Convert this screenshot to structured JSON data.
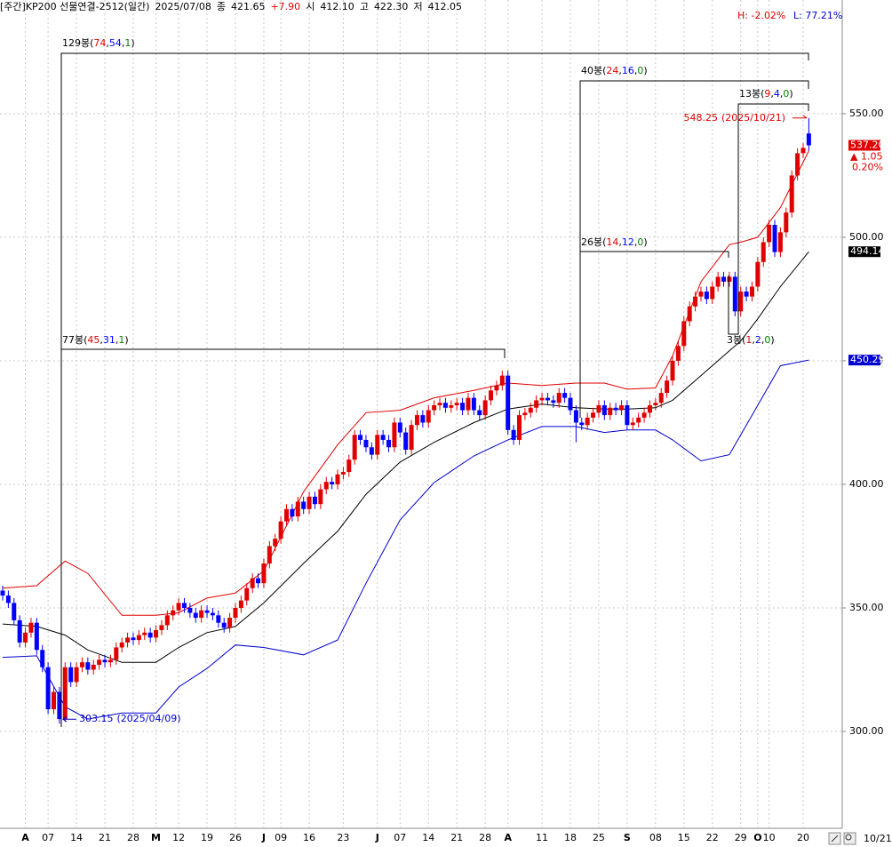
{
  "chart_data": {
    "type": "candlestick",
    "header": [
      {
        "text": "[주간]KP200 선물연결-2512(일간)",
        "color": "#000000"
      },
      {
        "text": "2025/07/08",
        "color": "#000000"
      },
      {
        "text": "종",
        "color": "#000000"
      },
      {
        "text": "421.65",
        "color": "#000000"
      },
      {
        "text": "+7.90",
        "color": "#e00000"
      },
      {
        "text": "시",
        "color": "#000000"
      },
      {
        "text": "412.10",
        "color": "#000000"
      },
      {
        "text": "고",
        "color": "#000000"
      },
      {
        "text": "422.30",
        "color": "#000000"
      },
      {
        "text": "저",
        "color": "#000000"
      },
      {
        "text": "412.05",
        "color": "#000000"
      }
    ],
    "range_high": {
      "text": "H: -2.02%",
      "color": "#e00000"
    },
    "range_low": {
      "text": "L: 77.21%",
      "color": "#0000d0"
    },
    "up_color": "#e00000",
    "down_color": "#0000ff",
    "ylim": [
      260.8,
      596.0
    ],
    "yticks": [
      {
        "value": 300,
        "label": "300.00"
      },
      {
        "value": 350,
        "label": "350.00"
      },
      {
        "value": 400,
        "label": "400.00"
      },
      {
        "value": 450,
        "label": "450.00"
      },
      {
        "value": 500,
        "label": "500.00"
      },
      {
        "value": 550,
        "label": "550.00"
      }
    ],
    "grid": true,
    "categories": [
      null,
      null,
      null,
      null,
      "A",
      null,
      null,
      null,
      "07",
      null,
      null,
      null,
      null,
      "14",
      null,
      null,
      null,
      null,
      "21",
      null,
      null,
      null,
      null,
      "28",
      null,
      null,
      null,
      "M",
      null,
      null,
      null,
      "12",
      null,
      null,
      null,
      null,
      "19",
      null,
      null,
      null,
      null,
      "26",
      null,
      null,
      null,
      null,
      "J",
      null,
      null,
      "09",
      null,
      null,
      null,
      null,
      "16",
      null,
      null,
      null,
      null,
      null,
      "23",
      null,
      null,
      null,
      null,
      null,
      "J",
      null,
      null,
      null,
      "07",
      null,
      null,
      null,
      null,
      "14",
      null,
      null,
      null,
      null,
      "21",
      null,
      null,
      null,
      null,
      "28",
      null,
      null,
      null,
      "A",
      null,
      null,
      null,
      null,
      null,
      "11",
      null,
      null,
      null,
      null,
      "18",
      null,
      null,
      null,
      null,
      "25",
      null,
      null,
      null,
      null,
      "S",
      null,
      null,
      null,
      null,
      "08",
      null,
      null,
      null,
      null,
      "15",
      null,
      null,
      null,
      null,
      "22",
      null,
      null,
      null,
      null,
      "29",
      null,
      null,
      "O",
      null,
      "10",
      null,
      null,
      null,
      null,
      null,
      "20",
      null
    ],
    "open": [
      357,
      355,
      352,
      345,
      336,
      340,
      344,
      333,
      326,
      309,
      316,
      305,
      326,
      320,
      326,
      328,
      325,
      327,
      329,
      328,
      329,
      334,
      336,
      338,
      337,
      339,
      340,
      338,
      341,
      343,
      347,
      349,
      352,
      350,
      348,
      346,
      349,
      348,
      347,
      344,
      342,
      346,
      350,
      353,
      358,
      362,
      360,
      368,
      375,
      378,
      385,
      390,
      387,
      393,
      390,
      395,
      392,
      398,
      401,
      400,
      404,
      405,
      410,
      420,
      418,
      415,
      412,
      420,
      418,
      415,
      425,
      421,
      414,
      424,
      428,
      425,
      430,
      432,
      433,
      431,
      432,
      433,
      430,
      435,
      430,
      428,
      434,
      438,
      440,
      444,
      422,
      418,
      428,
      429,
      431,
      434,
      435,
      434,
      433,
      437,
      435,
      430,
      425,
      424,
      427,
      429,
      432,
      428,
      431,
      430,
      432,
      424,
      425,
      427,
      429,
      432,
      433,
      437,
      442,
      450,
      456,
      466,
      472,
      476,
      478,
      475,
      480,
      484,
      482,
      484,
      470,
      478,
      476,
      480,
      490,
      498,
      505,
      494,
      502,
      510,
      525,
      534,
      542
    ],
    "high": [
      359,
      357,
      354,
      347,
      342,
      346,
      346,
      335,
      328,
      318,
      318,
      328,
      328,
      328,
      330,
      330,
      329,
      331,
      331,
      331,
      336,
      338,
      340,
      340,
      341,
      342,
      342,
      343,
      345,
      349,
      351,
      354,
      354,
      352,
      350,
      351,
      351,
      350,
      349,
      346,
      348,
      352,
      355,
      360,
      364,
      364,
      370,
      377,
      380,
      387,
      392,
      392,
      395,
      395,
      397,
      397,
      400,
      403,
      403,
      406,
      407,
      412,
      422,
      422,
      420,
      417,
      422,
      422,
      420,
      427,
      427,
      423,
      426,
      430,
      430,
      432,
      434,
      435,
      435,
      434,
      435,
      435,
      437,
      437,
      432,
      436,
      440,
      442,
      446,
      446,
      424,
      430,
      431,
      433,
      436,
      437,
      437,
      436,
      439,
      439,
      437,
      432,
      427,
      429,
      431,
      434,
      434,
      433,
      433,
      434,
      434,
      427,
      429,
      431,
      434,
      435,
      439,
      444,
      452,
      458,
      468,
      474,
      478,
      480,
      480,
      482,
      486,
      486,
      486,
      486,
      480,
      480,
      482,
      492,
      500,
      507,
      507,
      504,
      512,
      527,
      536,
      538,
      548.25
    ],
    "low": [
      353,
      350,
      343,
      334,
      334,
      338,
      331,
      324,
      307,
      307,
      303.15,
      304,
      318,
      318,
      324,
      323,
      323,
      325,
      326,
      326,
      327,
      332,
      334,
      335,
      335,
      337,
      336,
      336,
      339,
      341,
      345,
      347,
      348,
      346,
      344,
      344,
      346,
      345,
      342,
      340,
      340,
      344,
      348,
      351,
      356,
      358,
      358,
      366,
      373,
      376,
      383,
      385,
      385,
      388,
      388,
      390,
      390,
      396,
      398,
      398,
      402,
      403,
      408,
      416,
      413,
      410,
      410,
      416,
      413,
      413,
      419,
      412,
      412,
      422,
      423,
      423,
      428,
      430,
      429,
      429,
      430,
      428,
      428,
      428,
      426,
      426,
      432,
      436,
      438,
      420,
      416,
      416,
      426,
      427,
      429,
      432,
      432,
      431,
      431,
      433,
      428,
      417,
      422,
      422,
      425,
      427,
      426,
      426,
      428,
      428,
      422,
      422,
      423,
      425,
      427,
      430,
      431,
      435,
      440,
      448,
      454,
      464,
      470,
      474,
      473,
      473,
      478,
      480,
      480,
      468,
      468,
      474,
      474,
      478,
      488,
      496,
      492,
      492,
      500,
      508,
      523,
      532,
      535
    ],
    "close": [
      355,
      352,
      345,
      336,
      340,
      344,
      333,
      326,
      309,
      316,
      305,
      326,
      320,
      326,
      328,
      325,
      327,
      329,
      328,
      329,
      334,
      336,
      338,
      337,
      339,
      340,
      338,
      341,
      343,
      347,
      349,
      352,
      350,
      348,
      346,
      349,
      348,
      347,
      344,
      342,
      346,
      350,
      353,
      358,
      362,
      360,
      368,
      375,
      378,
      385,
      390,
      387,
      393,
      390,
      395,
      392,
      398,
      401,
      400,
      404,
      405,
      410,
      420,
      418,
      415,
      412,
      420,
      418,
      415,
      425,
      421,
      414,
      424,
      428,
      425,
      430,
      432,
      433,
      431,
      432,
      433,
      430,
      435,
      430,
      428,
      434,
      438,
      440,
      444,
      422,
      418,
      428,
      429,
      431,
      434,
      435,
      434,
      433,
      437,
      435,
      430,
      425,
      424,
      427,
      429,
      432,
      428,
      431,
      430,
      432,
      424,
      425,
      427,
      429,
      432,
      433,
      437,
      442,
      450,
      456,
      466,
      472,
      476,
      478,
      475,
      480,
      484,
      482,
      484,
      470,
      478,
      476,
      480,
      490,
      498,
      505,
      494,
      502,
      510,
      525,
      534,
      536.15,
      537.2
    ],
    "band_x": [
      0,
      6,
      11,
      15,
      21,
      27,
      31,
      36,
      41,
      46,
      53,
      59,
      64,
      70,
      76,
      83,
      89,
      95,
      101,
      106,
      110,
      115,
      118,
      123,
      128,
      130,
      133,
      137,
      142
    ],
    "bands": [
      {
        "color": "#e00000",
        "values": [
          358,
          359,
          369,
          364,
          347,
          347,
          348,
          354,
          356,
          365,
          397,
          416,
          429,
          430,
          435,
          438,
          441,
          440,
          441,
          441,
          438.5,
          439,
          452,
          482,
          497,
          498,
          500,
          512,
          535
        ]
      },
      {
        "color": "#000000",
        "values": [
          343.5,
          342.5,
          339,
          333,
          328,
          328,
          334,
          340,
          342.5,
          352,
          368,
          381,
          396,
          409,
          417,
          425,
          430.5,
          432.5,
          431,
          430.5,
          430.5,
          431,
          434,
          444,
          454,
          458,
          467,
          480,
          494.14
        ]
      },
      {
        "color": "#0000d0",
        "values": [
          330,
          330.6,
          310,
          305,
          307.5,
          307.5,
          318,
          325.5,
          335,
          334,
          331,
          337,
          360,
          385.6,
          400.7,
          411.5,
          418,
          423.4,
          423.4,
          421,
          422,
          422,
          418,
          409.5,
          412,
          420,
          432,
          448,
          450.29
        ]
      }
    ],
    "brackets": [
      {
        "label": "129봉(",
        "up": 74,
        "sep1": ",",
        "down": 54,
        "sep2": ",",
        "flat": 1,
        "end": ")"
      },
      {
        "label": "77봉(",
        "up": 45,
        "sep1": ",",
        "down": 31,
        "sep2": ",",
        "flat": 1,
        "end": ")"
      },
      {
        "label": "40봉(",
        "up": 24,
        "sep1": ",",
        "down": 16,
        "sep2": ",",
        "flat": 0,
        "end": ")"
      },
      {
        "label": "26봉(",
        "up": 14,
        "sep1": ",",
        "down": 12,
        "sep2": ",",
        "flat": 0,
        "end": ")"
      },
      {
        "label": "13봉(",
        "up": 9,
        "sep1": ",",
        "down": 4,
        "sep2": ",",
        "flat": 0,
        "end": ")"
      },
      {
        "label": "3봉(",
        "up": 1,
        "sep1": ",",
        "down": 2,
        "sep2": ",",
        "flat": 0,
        "end": ")"
      }
    ],
    "high_note": {
      "value": 548.25,
      "date": "(2025/10/21)",
      "color": "#e00000"
    },
    "low_note": {
      "value": 303.15,
      "date": "(2025/04/09)",
      "color": "#0000d0"
    },
    "price_tags": [
      {
        "value": 537.2,
        "label": "537.20",
        "color": "#e00000"
      },
      {
        "value": 494.14,
        "label": "494.14",
        "color": "#000000"
      },
      {
        "value": 450.29,
        "label": "450.29",
        "color": "#0000d0"
      }
    ],
    "change": "▲ 1.05",
    "change_pct": "0.20%",
    "date_label": "10/21"
  }
}
